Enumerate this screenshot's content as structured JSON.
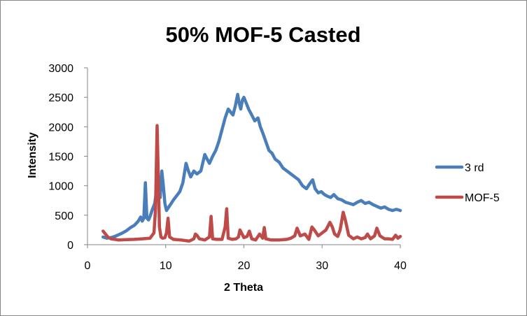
{
  "chart_data": {
    "type": "line",
    "title": "50% MOF-5 Casted",
    "xlabel": "2 Theta",
    "ylabel": "Intensity",
    "xlim": [
      0,
      40
    ],
    "ylim": [
      0,
      3000
    ],
    "xticks": [
      0,
      10,
      20,
      30,
      40
    ],
    "yticks": [
      0,
      500,
      1000,
      1500,
      2000,
      2500,
      3000
    ],
    "grid": false,
    "legend_position": "right",
    "series": [
      {
        "name": "3 rd",
        "color": "#4A7EBB",
        "x": [
          2,
          2.5,
          3,
          3.5,
          4,
          4.5,
          5,
          5.5,
          6,
          6.5,
          6.8,
          7.0,
          7.2,
          7.4,
          7.6,
          7.8,
          8.0,
          8.3,
          8.6,
          8.9,
          9.1,
          9.3,
          9.5,
          9.7,
          9.9,
          10.1,
          10.3,
          10.6,
          11.0,
          11.4,
          11.8,
          12.2,
          12.6,
          12.9,
          13.2,
          13.6,
          14.0,
          14.5,
          15.0,
          15.3,
          15.6,
          16.0,
          16.4,
          16.8,
          17.2,
          17.6,
          18.0,
          18.3,
          18.6,
          18.9,
          19.2,
          19.4,
          19.6,
          19.8,
          20.0,
          20.3,
          20.6,
          21.0,
          21.4,
          21.8,
          22.1,
          22.4,
          22.8,
          23.2,
          23.6,
          24.0,
          24.5,
          25.0,
          25.5,
          26.0,
          26.5,
          27.0,
          27.5,
          28.0,
          28.5,
          28.8,
          29.1,
          29.5,
          29.9,
          30.3,
          30.7,
          31.1,
          31.5,
          32.0,
          32.5,
          33.0,
          33.5,
          34.0,
          34.5,
          35.0,
          35.5,
          36.0,
          36.5,
          37.0,
          37.5,
          38.0,
          38.5,
          39.0,
          39.5,
          40.0
        ],
        "values": [
          130,
          110,
          120,
          140,
          170,
          200,
          240,
          290,
          330,
          400,
          470,
          400,
          450,
          1050,
          450,
          420,
          480,
          600,
          700,
          1000,
          1100,
          800,
          1250,
          1000,
          700,
          580,
          620,
          680,
          760,
          830,
          900,
          1050,
          1380,
          1250,
          1150,
          1250,
          1200,
          1250,
          1530,
          1450,
          1380,
          1500,
          1600,
          1750,
          1950,
          2150,
          2300,
          2250,
          2200,
          2350,
          2550,
          2400,
          2300,
          2450,
          2500,
          2400,
          2300,
          2200,
          2100,
          2150,
          2000,
          1900,
          1750,
          1600,
          1550,
          1450,
          1400,
          1300,
          1250,
          1200,
          1150,
          1100,
          1000,
          950,
          1050,
          1100,
          950,
          880,
          900,
          850,
          820,
          800,
          850,
          780,
          760,
          720,
          700,
          680,
          720,
          750,
          700,
          720,
          680,
          650,
          620,
          640,
          600,
          580,
          600,
          580
        ]
      },
      {
        "name": "MOF-5",
        "color": "#BE4B48",
        "x": [
          2,
          2.3,
          2.6,
          3.0,
          3.5,
          4.0,
          5.0,
          6.0,
          7.0,
          8.0,
          8.5,
          8.7,
          8.9,
          9.05,
          9.2,
          9.4,
          9.6,
          9.9,
          10.1,
          10.3,
          10.5,
          11.0,
          12.0,
          13.0,
          13.6,
          13.8,
          14.0,
          14.3,
          15.0,
          15.6,
          15.8,
          16.0,
          16.5,
          17.2,
          17.6,
          17.8,
          18.0,
          18.5,
          19.0,
          19.3,
          19.5,
          20.0,
          20.4,
          20.7,
          21.0,
          21.5,
          22.0,
          22.4,
          22.6,
          22.8,
          23.5,
          24.5,
          25.5,
          26.0,
          26.5,
          26.8,
          27.2,
          27.8,
          28.3,
          28.7,
          29.0,
          29.5,
          30.0,
          30.5,
          31.0,
          31.3,
          31.6,
          32.0,
          32.3,
          32.7,
          33.0,
          33.4,
          34.0,
          34.5,
          35.0,
          35.5,
          35.8,
          36.2,
          36.7,
          37.0,
          37.4,
          38.0,
          38.5,
          39.0,
          39.4,
          39.7,
          40.0
        ],
        "values": [
          230,
          180,
          130,
          100,
          90,
          80,
          85,
          90,
          100,
          110,
          200,
          600,
          2020,
          1200,
          300,
          130,
          110,
          120,
          200,
          450,
          130,
          90,
          80,
          60,
          100,
          180,
          160,
          100,
          80,
          130,
          480,
          100,
          90,
          90,
          300,
          610,
          110,
          90,
          100,
          130,
          250,
          120,
          140,
          230,
          100,
          80,
          180,
          110,
          290,
          100,
          80,
          80,
          90,
          110,
          150,
          280,
          150,
          180,
          90,
          300,
          250,
          150,
          200,
          250,
          380,
          300,
          180,
          140,
          250,
          550,
          400,
          160,
          100,
          130,
          100,
          120,
          180,
          100,
          150,
          280,
          150,
          100,
          100,
          90,
          160,
          110,
          140
        ]
      }
    ]
  }
}
